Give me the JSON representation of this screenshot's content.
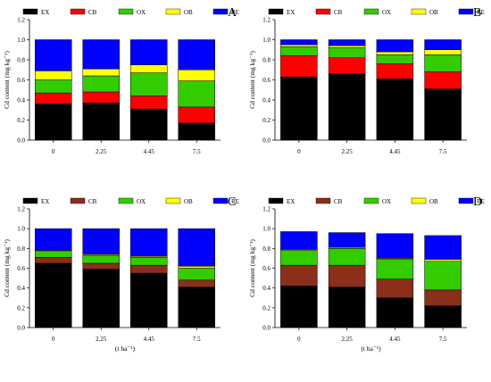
{
  "colors": {
    "EX": "#000000",
    "CB": "#ff0000",
    "CB_alt": "#8b2e1a",
    "OX": "#33cc00",
    "OB": "#ffff00",
    "RE": "#0000ff"
  },
  "chart_data": [
    {
      "type": "bar",
      "stacked": true,
      "panel": "A",
      "categories": [
        "0",
        "2.25",
        "4.45",
        "7.5"
      ],
      "ylabel": "Cd content (mg kg⁻¹)",
      "xlabel": "",
      "ylim": [
        0.0,
        1.2
      ],
      "yticks": [
        "0.0",
        "0.2",
        "0.4",
        "0.6",
        "0.8",
        "1.0",
        "1.2"
      ],
      "series": [
        {
          "name": "EX",
          "color": "#000000",
          "values": [
            0.36,
            0.37,
            0.31,
            0.17
          ]
        },
        {
          "name": "CB",
          "color": "#ff0000",
          "values": [
            0.11,
            0.11,
            0.13,
            0.16
          ]
        },
        {
          "name": "OX",
          "color": "#33cc00",
          "values": [
            0.13,
            0.16,
            0.23,
            0.26
          ]
        },
        {
          "name": "OB",
          "color": "#ffff00",
          "values": [
            0.09,
            0.07,
            0.08,
            0.11
          ]
        },
        {
          "name": "RE",
          "color": "#0000ff",
          "values": [
            0.31,
            0.29,
            0.25,
            0.3
          ]
        }
      ]
    },
    {
      "type": "bar",
      "stacked": true,
      "panel": "B",
      "categories": [
        "0",
        "2.25",
        "4.45",
        "7.5"
      ],
      "ylabel": "Cd content (mg kg⁻¹)",
      "xlabel": "",
      "ylim": [
        0.0,
        1.2
      ],
      "yticks": [
        "0.0",
        "0.2",
        "0.4",
        "0.6",
        "0.8",
        "1.0",
        "1.2"
      ],
      "series": [
        {
          "name": "EX",
          "color": "#000000",
          "values": [
            0.63,
            0.66,
            0.61,
            0.51
          ]
        },
        {
          "name": "CB",
          "color": "#ff0000",
          "values": [
            0.21,
            0.16,
            0.15,
            0.17
          ]
        },
        {
          "name": "OX",
          "color": "#33cc00",
          "values": [
            0.09,
            0.1,
            0.09,
            0.17
          ]
        },
        {
          "name": "OB",
          "color": "#ffff00",
          "values": [
            0.02,
            0.02,
            0.03,
            0.05
          ]
        },
        {
          "name": "RE",
          "color": "#0000ff",
          "values": [
            0.05,
            0.06,
            0.12,
            0.1
          ]
        }
      ]
    },
    {
      "type": "bar",
      "stacked": true,
      "panel": "C",
      "categories": [
        "0",
        "2.25",
        "4.45",
        "7.5"
      ],
      "ylabel": "Cd content (mg kg⁻¹)",
      "xlabel": "(t ha⁻¹)",
      "ylim": [
        0.0,
        1.2
      ],
      "yticks": [
        "0.0",
        "0.2",
        "0.4",
        "0.6",
        "0.8",
        "1.0",
        "1.2"
      ],
      "series": [
        {
          "name": "EX",
          "color": "#000000",
          "values": [
            0.65,
            0.59,
            0.55,
            0.41
          ]
        },
        {
          "name": "CB",
          "color": "#8b2e1a",
          "values": [
            0.06,
            0.06,
            0.08,
            0.07
          ]
        },
        {
          "name": "OX",
          "color": "#33cc00",
          "values": [
            0.06,
            0.08,
            0.08,
            0.12
          ]
        },
        {
          "name": "OB",
          "color": "#ffff00",
          "values": [
            0.01,
            0.01,
            0.01,
            0.02
          ]
        },
        {
          "name": "RE",
          "color": "#0000ff",
          "values": [
            0.22,
            0.26,
            0.28,
            0.38
          ]
        }
      ]
    },
    {
      "type": "bar",
      "stacked": true,
      "panel": "D",
      "categories": [
        "0",
        "2.25",
        "4.45",
        "7.5"
      ],
      "ylabel": "Cd content (mg kg⁻¹)",
      "xlabel": "(t ha⁻¹)",
      "ylim": [
        0.0,
        1.2
      ],
      "yticks": [
        "0.0",
        "0.2",
        "0.4",
        "0.6",
        "0.8",
        "1.0",
        "1.2"
      ],
      "series": [
        {
          "name": "EX",
          "color": "#000000",
          "values": [
            0.42,
            0.41,
            0.3,
            0.22
          ]
        },
        {
          "name": "CB",
          "color": "#8b2e1a",
          "values": [
            0.21,
            0.22,
            0.19,
            0.16
          ]
        },
        {
          "name": "OX",
          "color": "#33cc00",
          "values": [
            0.15,
            0.17,
            0.2,
            0.29
          ]
        },
        {
          "name": "OB",
          "color": "#ffff00",
          "values": [
            0.01,
            0.01,
            0.01,
            0.02
          ]
        },
        {
          "name": "RE",
          "color": "#0000ff",
          "values": [
            0.18,
            0.15,
            0.25,
            0.24
          ]
        }
      ]
    }
  ]
}
